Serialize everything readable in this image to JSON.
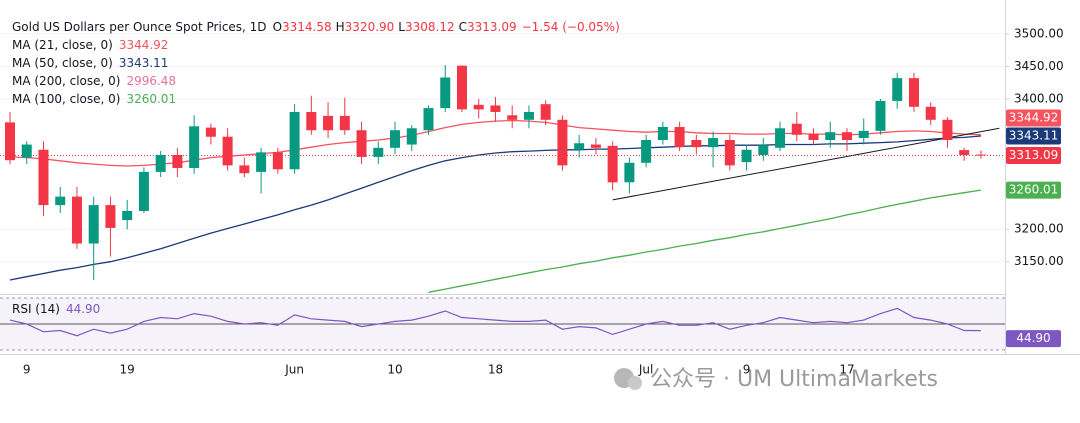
{
  "chart_data": {
    "type": "candlestick",
    "title": "Gold US Dollars per Ounce Spot Prices, 1D",
    "ohlc_legend": [
      [
        "O",
        "3314.58"
      ],
      [
        "H",
        "3320.90"
      ],
      [
        "L",
        "3308.12"
      ],
      [
        "C",
        "3313.09"
      ]
    ],
    "change": "−1.54 (−0.05%)",
    "categories": [
      null,
      "9",
      null,
      null,
      null,
      null,
      null,
      "19",
      null,
      null,
      null,
      null,
      null,
      null,
      null,
      null,
      null,
      "Jun",
      null,
      null,
      null,
      null,
      null,
      "10",
      null,
      null,
      null,
      null,
      null,
      "18",
      null,
      null,
      null,
      null,
      null,
      null,
      null,
      null,
      "Jul",
      null,
      null,
      null,
      null,
      null,
      "9",
      null,
      null,
      null,
      null,
      null,
      "17",
      null,
      null,
      null,
      null,
      null,
      null,
      null,
      null
    ],
    "open": [
      3364,
      3310,
      3322,
      3237,
      3250,
      3178,
      3237,
      3214,
      3228,
      3288,
      3314,
      3294,
      3356,
      3342,
      3298,
      3288,
      3318,
      3292,
      3380,
      3374,
      3374,
      3352,
      3311,
      3325,
      3330,
      3352,
      3386,
      3451,
      3391,
      3390,
      3375,
      3368,
      3392,
      3368,
      3322,
      3330,
      3328,
      3272,
      3302,
      3337,
      3357,
      3337,
      3326,
      3337,
      3303,
      3314,
      3325,
      3362,
      3346,
      3337,
      3349,
      3340,
      3351,
      3397,
      3432,
      3388,
      3368,
      3321.5,
      3314.58
    ],
    "high": [
      3380,
      3335,
      3335,
      3265,
      3265,
      3250,
      3250,
      3245,
      3295,
      3320,
      3325,
      3375,
      3362,
      3355,
      3310,
      3325,
      3325,
      3392,
      3405,
      3395,
      3402,
      3365,
      3335,
      3365,
      3360,
      3390,
      3452,
      3452,
      3400,
      3403,
      3390,
      3390,
      3398,
      3375,
      3345,
      3340,
      3335,
      3310,
      3345,
      3365,
      3365,
      3345,
      3350,
      3345,
      3330,
      3340,
      3365,
      3380,
      3355,
      3365,
      3355,
      3370,
      3400,
      3440,
      3440,
      3395,
      3372,
      3325,
      3320.9
    ],
    "low": [
      3300,
      3300,
      3220,
      3225,
      3170,
      3122,
      3158,
      3200,
      3225,
      3280,
      3280,
      3285,
      3330,
      3290,
      3280,
      3255,
      3285,
      3285,
      3345,
      3340,
      3345,
      3300,
      3300,
      3315,
      3320,
      3345,
      3380,
      3380,
      3370,
      3365,
      3355,
      3355,
      3360,
      3290,
      3310,
      3315,
      3260,
      3255,
      3295,
      3330,
      3320,
      3315,
      3295,
      3290,
      3290,
      3305,
      3320,
      3335,
      3330,
      3325,
      3320,
      3330,
      3345,
      3385,
      3380,
      3360,
      3325,
      3305,
      3308.12
    ],
    "close": [
      3306,
      3330,
      3237,
      3250,
      3178,
      3237,
      3202,
      3228,
      3288,
      3314,
      3294,
      3358,
      3342,
      3298,
      3286,
      3318,
      3292,
      3380,
      3352,
      3352,
      3352,
      3311,
      3325,
      3352,
      3355,
      3386,
      3433,
      3384,
      3384,
      3380,
      3368,
      3380,
      3368,
      3298,
      3332,
      3325,
      3272,
      3302,
      3337,
      3357,
      3326,
      3326,
      3340,
      3298,
      3322,
      3329,
      3355,
      3345,
      3337,
      3349,
      3337,
      3351,
      3397,
      3432,
      3388,
      3368,
      3337,
      3314,
      3313.09
    ],
    "up_color": "#089981",
    "down_color": "#f23645",
    "series": [
      {
        "name": "MA (21, close, 0)",
        "color": "#f7525f",
        "last": 3344.92,
        "values": [
          3311,
          3310,
          3308,
          3305,
          3302,
          3300,
          3298,
          3297,
          3298,
          3300,
          3302,
          3306,
          3310,
          3312,
          3314,
          3316,
          3318,
          3322,
          3326,
          3330,
          3333,
          3335,
          3337,
          3340,
          3344,
          3350,
          3356,
          3361,
          3364,
          3366,
          3367,
          3366,
          3364,
          3360,
          3356,
          3354,
          3352,
          3350,
          3349,
          3350,
          3350,
          3348,
          3347,
          3347,
          3346,
          3346,
          3347,
          3347,
          3346,
          3346,
          3345,
          3346,
          3348,
          3350,
          3351,
          3350,
          3348,
          3346,
          3344.92
        ]
      },
      {
        "name": "MA (50, close, 0)",
        "color": "#1a3a7a",
        "last": 3343.11,
        "values": [
          3122,
          3127,
          3132,
          3137,
          3141,
          3146,
          3150,
          3156,
          3163,
          3170,
          3178,
          3186,
          3194,
          3201,
          3208,
          3215,
          3222,
          3230,
          3237,
          3245,
          3254,
          3263,
          3272,
          3281,
          3290,
          3298,
          3305,
          3310,
          3314,
          3317,
          3319,
          3320,
          3321,
          3322,
          3322,
          3323,
          3323,
          3324,
          3325,
          3326,
          3327,
          3328,
          3328,
          3329,
          3329,
          3329,
          3330,
          3330,
          3330,
          3331,
          3331,
          3332,
          3333,
          3334,
          3336,
          3338,
          3340,
          3341,
          3343.11
        ]
      },
      {
        "name": "MA (200, close, 0)",
        "color": "#e57399",
        "last": 2996.48
      },
      {
        "name": "MA (100, close, 0)",
        "color": "#4caf50",
        "last": 3260.01,
        "values": [
          null,
          null,
          null,
          null,
          null,
          null,
          null,
          null,
          null,
          null,
          null,
          null,
          null,
          null,
          null,
          null,
          null,
          null,
          null,
          null,
          null,
          null,
          null,
          null,
          null,
          3103,
          3108,
          3113,
          3118,
          3123,
          3128,
          3133,
          3138,
          3142,
          3147,
          3151,
          3156,
          3160,
          3165,
          3169,
          3174,
          3178,
          3183,
          3187,
          3192,
          3196,
          3201,
          3206,
          3211,
          3216,
          3222,
          3227,
          3233,
          3238,
          3243,
          3248,
          3252,
          3256,
          3260.01
        ]
      }
    ],
    "trendline": {
      "from": [
        36,
        3245
      ],
      "to": [
        59.1,
        3355
      ],
      "color": "#131722"
    },
    "ylim": [
      3102,
      3552
    ],
    "yticks": [
      {
        "value": 3150,
        "label": "3150.00"
      },
      {
        "value": 3200,
        "label": "3200.00"
      },
      {
        "value": 3400,
        "label": "3400.00"
      },
      {
        "value": 3450,
        "label": "3450.00"
      },
      {
        "value": 3500,
        "label": "3500.00"
      }
    ],
    "grid": true,
    "rsi": {
      "name": "RSI (14)",
      "color": "#7e57c2",
      "value": 44.9,
      "value_label": "44.90",
      "ylim": [
        28.5,
        71.5
      ],
      "levels": [
        70,
        50,
        30
      ],
      "values": [
        53,
        50,
        44,
        45,
        41,
        46,
        43,
        46,
        52,
        55,
        54,
        58,
        56,
        52,
        50,
        51,
        49,
        57,
        54,
        53,
        52,
        48,
        50,
        52,
        53,
        56,
        60,
        55,
        54,
        53,
        52,
        52,
        53,
        46,
        48,
        47,
        42,
        46,
        50,
        52,
        49,
        49,
        51,
        46,
        49,
        51,
        55,
        53,
        51,
        52,
        51,
        53,
        58,
        62,
        55,
        53,
        50,
        45,
        44.9
      ]
    },
    "watermark": "公众号 · UM UltimaMarkets"
  }
}
